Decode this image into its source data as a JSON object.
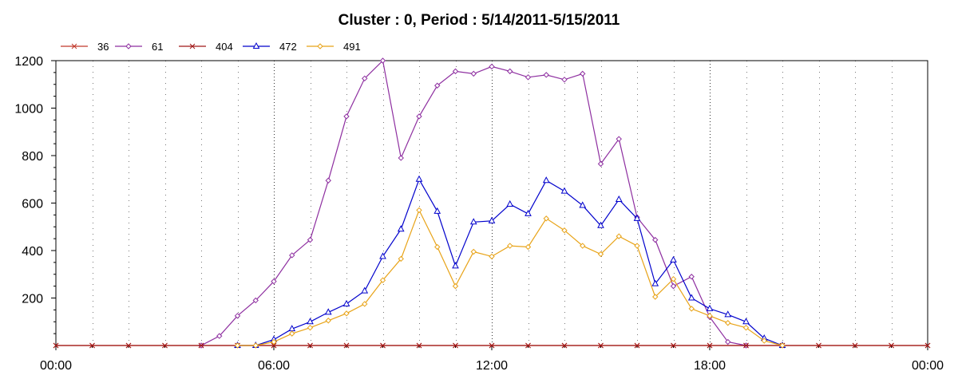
{
  "chart_data": {
    "type": "line",
    "title": "Cluster : 0, Period : 5/14/2011-5/15/2011",
    "xlabel": "",
    "ylabel": "",
    "x_tick_labels": [
      "00:00",
      "06:00",
      "12:00",
      "18:00",
      "00:00"
    ],
    "y_ticks": [
      200,
      400,
      600,
      800,
      1000,
      1200
    ],
    "ylim": [
      0,
      1200
    ],
    "x_range_hours": [
      0,
      24
    ],
    "grid": true,
    "legend_position": "top-left",
    "series": [
      {
        "name": "36",
        "color": "#c0392b",
        "marker": "x",
        "x": [
          0,
          1,
          2,
          3,
          4,
          5,
          6,
          7,
          8,
          9,
          10,
          11,
          12,
          13,
          14,
          15,
          16,
          17,
          18,
          19,
          20,
          21,
          22,
          23,
          24
        ],
        "values": [
          0,
          0,
          0,
          0,
          0,
          0,
          0,
          0,
          0,
          0,
          0,
          0,
          0,
          0,
          0,
          0,
          0,
          0,
          0,
          0,
          0,
          0,
          0,
          0,
          0
        ]
      },
      {
        "name": "61",
        "color": "#8e2fa0",
        "marker": "diamond",
        "x": [
          4,
          4.5,
          5,
          5.5,
          6,
          6.5,
          7,
          7.5,
          8,
          8.5,
          9,
          9.5,
          10,
          10.5,
          11,
          11.5,
          12,
          12.5,
          13,
          13.5,
          14,
          14.5,
          15,
          15.5,
          16,
          16.5,
          17,
          17.5,
          18,
          18.5,
          19
        ],
        "values": [
          0,
          40,
          125,
          190,
          270,
          380,
          445,
          695,
          965,
          1125,
          1200,
          790,
          965,
          1095,
          1155,
          1145,
          1175,
          1155,
          1130,
          1140,
          1120,
          1145,
          765,
          870,
          540,
          445,
          250,
          290,
          120,
          15,
          0
        ]
      },
      {
        "name": "404",
        "color": "#a01818",
        "marker": "x",
        "x": [
          0,
          1,
          2,
          3,
          4,
          5,
          6,
          7,
          8,
          9,
          10,
          11,
          12,
          13,
          14,
          15,
          16,
          17,
          18,
          19,
          20,
          21,
          22,
          23,
          24
        ],
        "values": [
          0,
          0,
          0,
          0,
          0,
          0,
          0,
          0,
          0,
          0,
          0,
          0,
          0,
          0,
          0,
          0,
          0,
          0,
          0,
          0,
          0,
          0,
          0,
          0,
          0
        ]
      },
      {
        "name": "472",
        "color": "#0000cc",
        "marker": "triangle",
        "x": [
          5,
          5.5,
          6,
          6.5,
          7,
          7.5,
          8,
          8.5,
          9,
          9.5,
          10,
          10.5,
          11,
          11.5,
          12,
          12.5,
          13,
          13.5,
          14,
          14.5,
          15,
          15.5,
          16,
          16.5,
          17,
          17.5,
          18,
          18.5,
          19,
          19.5,
          20
        ],
        "values": [
          0,
          0,
          25,
          70,
          100,
          140,
          175,
          230,
          375,
          490,
          700,
          565,
          335,
          520,
          525,
          595,
          555,
          695,
          650,
          590,
          505,
          615,
          535,
          260,
          360,
          200,
          155,
          130,
          100,
          30,
          0
        ]
      },
      {
        "name": "491",
        "color": "#e8a317",
        "marker": "diamond",
        "x": [
          5,
          5.5,
          6,
          6.5,
          7,
          7.5,
          8,
          8.5,
          9,
          9.5,
          10,
          10.5,
          11,
          11.5,
          12,
          12.5,
          13,
          13.5,
          14,
          14.5,
          15,
          15.5,
          16,
          16.5,
          17,
          17.5,
          18,
          18.5,
          19,
          19.5,
          20
        ],
        "values": [
          0,
          0,
          15,
          50,
          75,
          105,
          135,
          175,
          275,
          365,
          570,
          415,
          250,
          395,
          375,
          420,
          415,
          535,
          485,
          420,
          385,
          460,
          420,
          205,
          280,
          155,
          125,
          95,
          75,
          20,
          0
        ]
      }
    ]
  }
}
